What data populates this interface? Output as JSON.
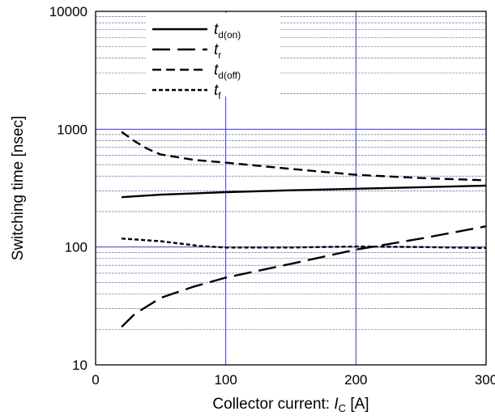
{
  "chart_data": {
    "type": "line",
    "xlabel_prefix": "Collector current: ",
    "xlabel_var": "I",
    "xlabel_sub": "C",
    "xlabel_suffix": " [A]",
    "ylabel": "Switching time  [nsec]",
    "xlim": [
      0,
      300
    ],
    "ylim": [
      10,
      10000
    ],
    "yscale": "log",
    "x_ticks": [
      "0",
      "100",
      "200",
      "300"
    ],
    "y_ticks": [
      "10",
      "100",
      "1000",
      "10000"
    ],
    "grid_major_color": "#3a3ad0",
    "grid_minor_color": "#5a5a9a",
    "legend_position": "top-left",
    "series": [
      {
        "name_main": "t",
        "name_sub": "d(on)",
        "dash": "solid",
        "x": [
          20,
          50,
          100,
          150,
          200,
          250,
          300
        ],
        "y": [
          265,
          278,
          292,
          303,
          312,
          322,
          332
        ]
      },
      {
        "name_main": "t",
        "name_sub": "r",
        "dash": "long",
        "x": [
          20,
          30,
          50,
          75,
          100,
          150,
          200,
          250,
          300
        ],
        "y": [
          21,
          27,
          37,
          46,
          55,
          72,
          95,
          118,
          150
        ]
      },
      {
        "name_main": "t",
        "name_sub": "d(off)",
        "dash": "medium",
        "x": [
          20,
          30,
          40,
          50,
          75,
          100,
          150,
          200,
          250,
          300
        ],
        "y": [
          950,
          790,
          680,
          610,
          550,
          520,
          460,
          410,
          385,
          368
        ]
      },
      {
        "name_main": "t",
        "name_sub": "f",
        "dash": "short",
        "x": [
          20,
          50,
          80,
          100,
          150,
          200,
          250,
          300
        ],
        "y": [
          118,
          112,
          102,
          99,
          99,
          101,
          100,
          98
        ]
      }
    ]
  }
}
